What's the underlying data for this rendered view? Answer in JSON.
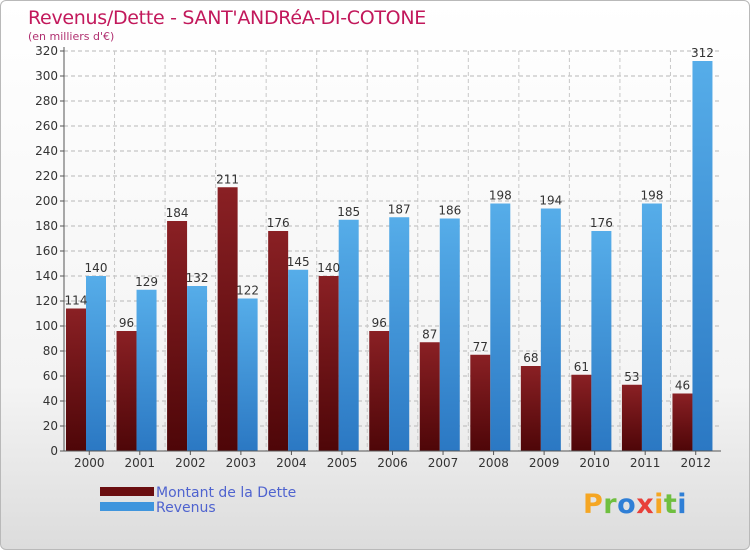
{
  "title": "Revenus/Dette - SANT'ANDRéA-DI-COTONE",
  "subtitle": "(en milliers d'€)",
  "colors": {
    "dette": "#7a1416",
    "dette_dark": "#4e0608",
    "revenus": "#4aa3e6",
    "revenus_dark": "#2b78c3",
    "title": "#c2185b",
    "legend_text": "#4f63cf"
  },
  "legend": {
    "dette": "Montant de la Dette",
    "revenus": "Revenus"
  },
  "logo": {
    "letters": [
      "P",
      "r",
      "o",
      "x",
      "i",
      "t",
      "i"
    ],
    "colors": [
      "#f5a623",
      "#6fbf3f",
      "#2f7fd6",
      "#e8403a",
      "#f5a623",
      "#6fbf3f",
      "#2f7fd6"
    ]
  },
  "chart_data": {
    "type": "bar",
    "title": "Revenus/Dette - SANT'ANDRéA-DI-COTONE",
    "subtitle": "(en milliers d'€)",
    "xlabel": "",
    "ylabel": "",
    "categories": [
      "2000",
      "2001",
      "2002",
      "2003",
      "2004",
      "2005",
      "2006",
      "2007",
      "2008",
      "2009",
      "2010",
      "2011",
      "2012"
    ],
    "series": [
      {
        "name": "Montant de la Dette",
        "values": [
          114,
          96,
          184,
          211,
          176,
          140,
          96,
          87,
          77,
          68,
          61,
          53,
          46
        ]
      },
      {
        "name": "Revenus",
        "values": [
          140,
          129,
          132,
          122,
          145,
          185,
          187,
          186,
          198,
          194,
          176,
          198,
          312
        ]
      }
    ],
    "ylim": [
      0,
      320
    ],
    "yticks": [
      0,
      20,
      40,
      60,
      80,
      100,
      120,
      140,
      160,
      180,
      200,
      220,
      240,
      260,
      280,
      300,
      320
    ],
    "grid": true,
    "data_labels": true,
    "legend_position": "bottom-left"
  }
}
